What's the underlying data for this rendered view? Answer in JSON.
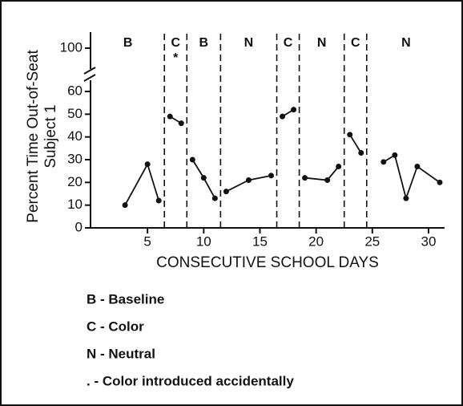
{
  "chart_data": {
    "type": "line",
    "ylabel": "Percent Time Out-of-Seat",
    "ylabel2": "Subject 1",
    "xlabel": "CONSECUTIVE SCHOOL DAYS",
    "xlim": [
      0,
      31.5
    ],
    "xticks": [
      5,
      10,
      15,
      20,
      25,
      30
    ],
    "ylim": [
      0,
      60
    ],
    "yticks": [
      0,
      10,
      20,
      30,
      40,
      50,
      60
    ],
    "yticks_upper": [
      100
    ],
    "color": "#111111",
    "series": [
      {
        "x": [
          3,
          5,
          6
        ],
        "values": [
          10,
          28,
          12
        ]
      },
      {
        "x": [
          7,
          8
        ],
        "values": [
          49,
          46
        ]
      },
      {
        "x": [
          9,
          10,
          11
        ],
        "values": [
          30,
          22,
          13
        ]
      },
      {
        "x": [
          12,
          14,
          16
        ],
        "values": [
          16,
          21,
          23
        ]
      },
      {
        "x": [
          17,
          18
        ],
        "values": [
          49,
          52
        ]
      },
      {
        "x": [
          19,
          21,
          22
        ],
        "values": [
          22,
          21,
          27
        ]
      },
      {
        "x": [
          23,
          24
        ],
        "values": [
          41,
          33
        ]
      },
      {
        "x": [
          26,
          27,
          28,
          29,
          31
        ],
        "values": [
          29,
          32,
          13,
          27,
          20
        ]
      }
    ],
    "phase_boundaries": [
      6.5,
      8.5,
      11.5,
      16.5,
      18.5,
      22.5,
      24.5
    ],
    "phase_labels": [
      "B",
      "C",
      "B",
      "N",
      "C",
      "N",
      "C",
      "N"
    ],
    "phase_note": {
      "phase": 1,
      "text": "*"
    },
    "legend": [
      "B - Baseline",
      "C - Color",
      "N - Neutral",
      ". - Color introduced accidentally"
    ]
  }
}
